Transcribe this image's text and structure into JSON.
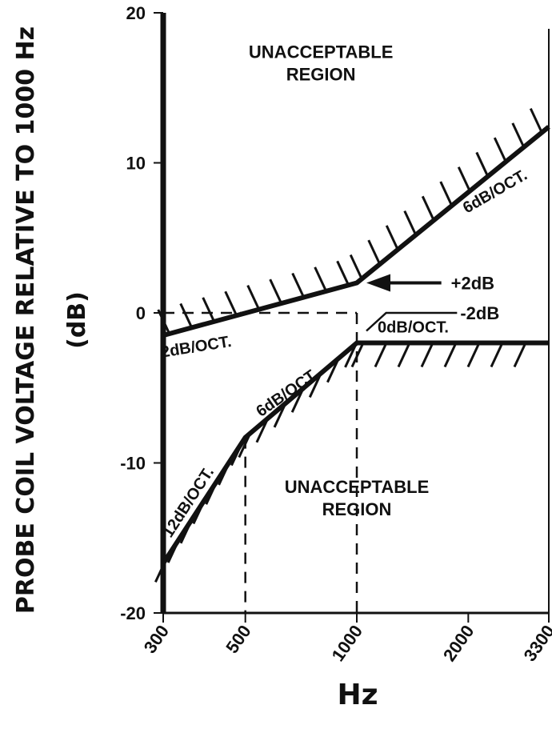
{
  "chart_data": {
    "type": "line",
    "xlabel": "Hz",
    "ylabel_line1": "PROBE COIL VOLTAGE RELATIVE TO 1000 Hz",
    "ylabel_line2": "(dB)",
    "x_scale": "log",
    "xlim": [
      300,
      3300
    ],
    "ylim": [
      -20,
      20
    ],
    "x_ticks": [
      {
        "value": 300,
        "label": "300"
      },
      {
        "value": 500,
        "label": "500"
      },
      {
        "value": 1000,
        "label": "1000"
      },
      {
        "value": 2000,
        "label": "2000"
      },
      {
        "value": 3300,
        "label": "3300"
      }
    ],
    "y_ticks": [
      {
        "value": 20,
        "label": "20"
      },
      {
        "value": 10,
        "label": "10"
      },
      {
        "value": 0,
        "label": "0"
      },
      {
        "value": -10,
        "label": "-10"
      },
      {
        "value": -20,
        "label": "-20"
      }
    ],
    "series": [
      {
        "x": [
          300,
          1000,
          3300
        ],
        "y": [
          -1.5,
          2,
          12.4
        ]
      },
      {
        "x": [
          300,
          500,
          1000,
          3300
        ],
        "y": [
          -16.7,
          -8.3,
          -2,
          -2
        ]
      }
    ],
    "reference_lines": [
      {
        "x": [
          300,
          1000
        ],
        "y": [
          0,
          0
        ]
      },
      {
        "x": [
          1000,
          1000
        ],
        "y": [
          0,
          -20
        ]
      },
      {
        "x": [
          500,
          500
        ],
        "y": [
          -8.3,
          -20
        ]
      }
    ],
    "annotations": [
      {
        "text_line1": "UNACCEPTABLE",
        "text_line2": "REGION",
        "x": 800,
        "y": 17
      },
      {
        "text_line1": "UNACCEPTABLE",
        "text_line2": "REGION",
        "x": 1000,
        "y": -12
      }
    ],
    "slope_labels": [
      {
        "text": "2dB/OCT.",
        "x": 370,
        "y": -2.6,
        "angle": -9
      },
      {
        "text": "6dB/OCT.",
        "x": 2400,
        "y": 7.8,
        "angle": -30
      },
      {
        "text": "12dB/OCT.",
        "x": 360,
        "y": -12.8,
        "angle": -57
      },
      {
        "text": "6dB/OCT.",
        "x": 660,
        "y": -5.6,
        "angle": -35
      },
      {
        "text": "0dB/OCT.",
        "x": 1420,
        "y": -1.3,
        "angle": 0
      }
    ],
    "callouts": [
      {
        "text": "+2dB",
        "x": 1850,
        "y": 2
      },
      {
        "text": "-2dB",
        "x": 2000,
        "y": 0
      }
    ]
  }
}
